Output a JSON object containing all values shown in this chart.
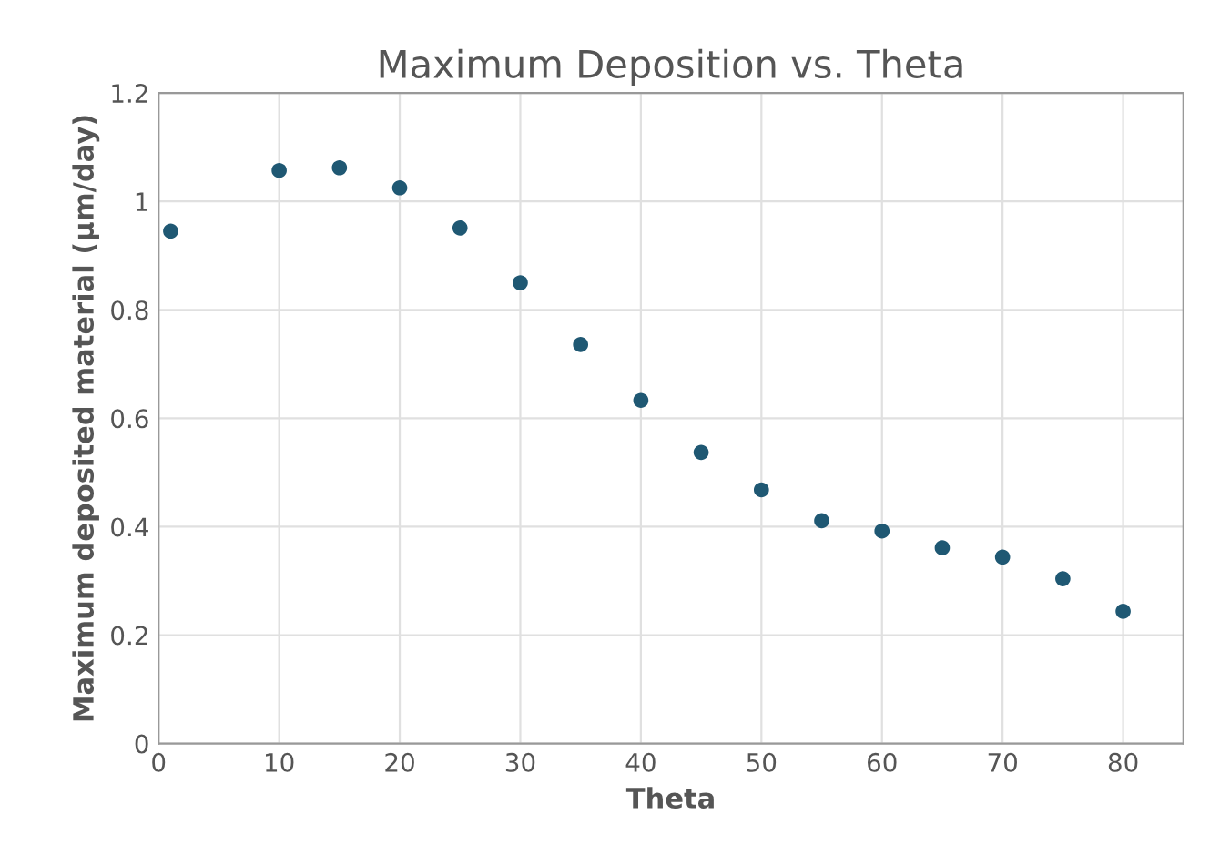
{
  "chart_data": {
    "type": "scatter",
    "title": "Maximum Deposition vs. Theta",
    "xlabel": "Theta",
    "ylabel": "Maximum deposited material (µm/day)",
    "x": [
      1,
      10,
      15,
      20,
      25,
      30,
      35,
      40,
      45,
      50,
      55,
      60,
      65,
      70,
      75,
      80
    ],
    "series": [
      {
        "color": "#1f5873",
        "values": [
          0.945,
          1.057,
          1.062,
          1.025,
          0.951,
          0.85,
          0.736,
          0.633,
          0.537,
          0.468,
          0.411,
          0.392,
          0.361,
          0.344,
          0.304,
          0.244
        ]
      }
    ],
    "xlim": [
      0,
      85
    ],
    "xticks": [
      0,
      10,
      20,
      30,
      40,
      50,
      60,
      70,
      80
    ],
    "ylim": [
      0,
      1.2
    ],
    "yticks": [
      0,
      0.2,
      0.4,
      0.6,
      0.8,
      1,
      1.2
    ],
    "grid": true,
    "marker": "circle"
  }
}
